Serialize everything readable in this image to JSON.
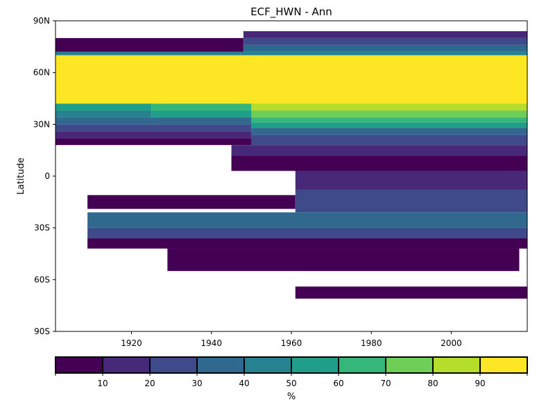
{
  "chart_data": {
    "type": "heatmap",
    "title": "ECF_HWN - Ann",
    "xlabel": "",
    "ylabel": "Latitude",
    "xlim": [
      1901,
      2019
    ],
    "ylim": [
      -90,
      90
    ],
    "x_ticks": [
      1920,
      1940,
      1960,
      1980,
      2000
    ],
    "x_tick_labels": [
      "1920",
      "1940",
      "1960",
      "1980",
      "2000"
    ],
    "y_ticks": [
      90,
      60,
      30,
      0,
      -30,
      -60,
      -90
    ],
    "y_tick_labels": [
      "90N",
      "60N",
      "30N",
      "0",
      "30S",
      "60S",
      "90S"
    ],
    "grid": false,
    "colorbar": {
      "label": "%",
      "levels": [
        0,
        10,
        20,
        30,
        40,
        50,
        60,
        70,
        80,
        90,
        100
      ],
      "tick_values": [
        10,
        20,
        30,
        40,
        50,
        60,
        70,
        80,
        90
      ],
      "tick_labels": [
        "10",
        "20",
        "30",
        "40",
        "50",
        "60",
        "70",
        "80",
        "90"
      ],
      "colors": [
        "#440154",
        "#482878",
        "#3e4a89",
        "#31688e",
        "#26828e",
        "#1f9e89",
        "#35b779",
        "#6ece58",
        "#b5de2b",
        "#fde725"
      ],
      "placement": "bottom"
    },
    "regions": [
      {
        "x": [
          1901,
          2019
        ],
        "y": [
          -90,
          -90
        ],
        "bin": 0
      },
      {
        "x": [
          1901,
          1948
        ],
        "y": [
          72,
          80
        ],
        "bin": 0
      },
      {
        "x": [
          1948,
          2019
        ],
        "y": [
          80,
          84
        ],
        "bin": 1
      },
      {
        "x": [
          1948,
          2019
        ],
        "y": [
          76,
          80
        ],
        "bin": 2
      },
      {
        "x": [
          1948,
          2019
        ],
        "y": [
          72,
          76
        ],
        "bin": 3
      },
      {
        "x": [
          1901,
          2019
        ],
        "y": [
          70,
          72
        ],
        "bin": 4
      },
      {
        "x": [
          1901,
          2019
        ],
        "y": [
          42,
          70
        ],
        "bin": 9
      },
      {
        "x": [
          1901,
          1925
        ],
        "y": [
          38,
          42
        ],
        "bin": 5
      },
      {
        "x": [
          1925,
          1950
        ],
        "y": [
          38,
          42
        ],
        "bin": 6
      },
      {
        "x": [
          1950,
          2019
        ],
        "y": [
          38,
          42
        ],
        "bin": 8
      },
      {
        "x": [
          1950,
          2019
        ],
        "y": [
          34,
          38
        ],
        "bin": 7
      },
      {
        "x": [
          1901,
          1925
        ],
        "y": [
          34,
          38
        ],
        "bin": 4
      },
      {
        "x": [
          1925,
          1950
        ],
        "y": [
          34,
          38
        ],
        "bin": 5
      },
      {
        "x": [
          1950,
          2019
        ],
        "y": [
          31,
          34
        ],
        "bin": 6
      },
      {
        "x": [
          1901,
          1950
        ],
        "y": [
          30,
          34
        ],
        "bin": 3
      },
      {
        "x": [
          1950,
          2019
        ],
        "y": [
          28,
          31
        ],
        "bin": 5
      },
      {
        "x": [
          1901,
          1950
        ],
        "y": [
          26,
          30
        ],
        "bin": 2
      },
      {
        "x": [
          1950,
          2019
        ],
        "y": [
          24,
          28
        ],
        "bin": 3
      },
      {
        "x": [
          1901,
          1950
        ],
        "y": [
          22,
          26
        ],
        "bin": 1
      },
      {
        "x": [
          1950,
          2019
        ],
        "y": [
          18,
          24
        ],
        "bin": 2
      },
      {
        "x": [
          1901,
          1950
        ],
        "y": [
          18,
          22
        ],
        "bin": 0
      },
      {
        "x": [
          1945,
          2019
        ],
        "y": [
          12,
          18
        ],
        "bin": 1
      },
      {
        "x": [
          1945,
          2019
        ],
        "y": [
          3,
          12
        ],
        "bin": 0
      },
      {
        "x": [
          1961,
          2019
        ],
        "y": [
          -8,
          3
        ],
        "bin": 1
      },
      {
        "x": [
          1909,
          1961
        ],
        "y": [
          -19,
          -11
        ],
        "bin": 0
      },
      {
        "x": [
          1961,
          2019
        ],
        "y": [
          -21,
          -8
        ],
        "bin": 2
      },
      {
        "x": [
          1909,
          2019
        ],
        "y": [
          -30,
          -21
        ],
        "bin": 3
      },
      {
        "x": [
          1909,
          2019
        ],
        "y": [
          -36,
          -30
        ],
        "bin": 2
      },
      {
        "x": [
          1909,
          2019
        ],
        "y": [
          -42,
          -36
        ],
        "bin": 0
      },
      {
        "x": [
          1929,
          2017
        ],
        "y": [
          -55,
          -42
        ],
        "bin": 0
      },
      {
        "x": [
          1961,
          2019
        ],
        "y": [
          -71,
          -64
        ],
        "bin": 0
      }
    ]
  }
}
